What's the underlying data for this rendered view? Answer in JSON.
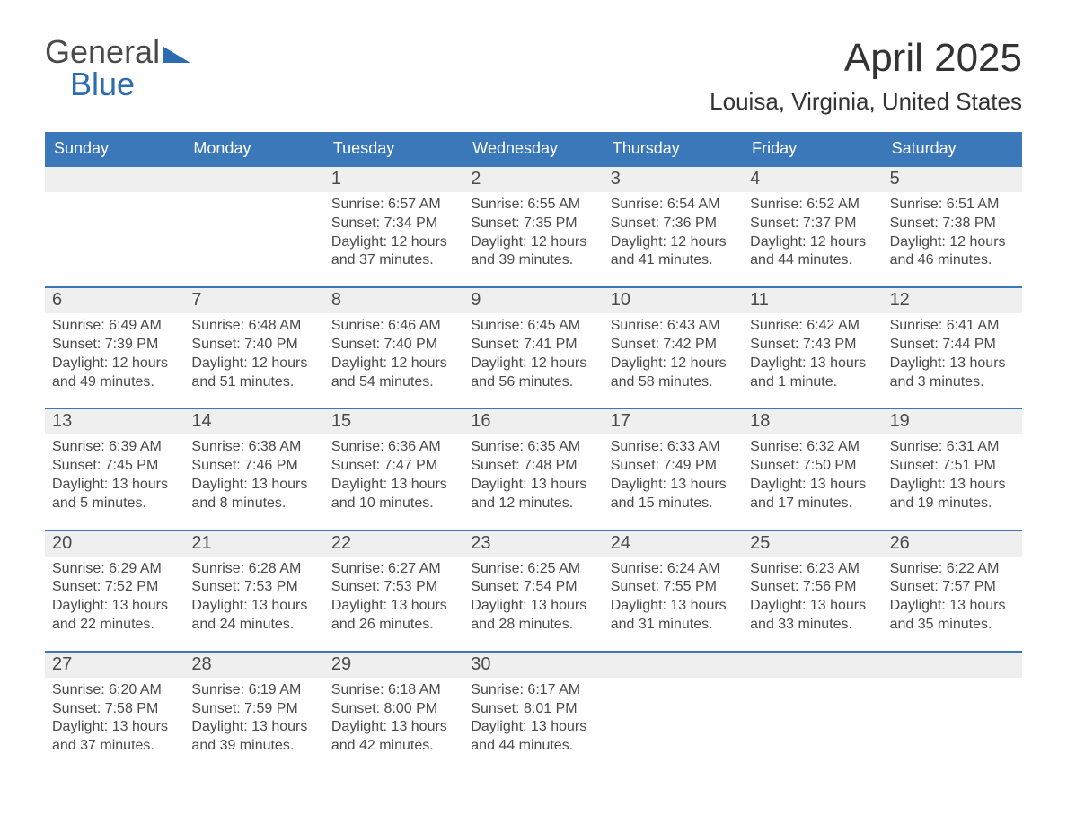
{
  "colors": {
    "brand_blue": "#2d6cb0",
    "header_blue": "#3a78b9",
    "daynum_bg": "#efefef",
    "text": "#333333",
    "muted": "#4a4a4a",
    "white": "#ffffff"
  },
  "logo": {
    "word1": "General",
    "word2": "Blue"
  },
  "title": "April 2025",
  "location": "Louisa, Virginia, United States",
  "weekdays": [
    "Sunday",
    "Monday",
    "Tuesday",
    "Wednesday",
    "Thursday",
    "Friday",
    "Saturday"
  ],
  "calendar": {
    "leading_blanks": 2,
    "days": [
      {
        "n": "1",
        "sunrise": "Sunrise: 6:57 AM",
        "sunset": "Sunset: 7:34 PM",
        "daylight": "Daylight: 12 hours and 37 minutes."
      },
      {
        "n": "2",
        "sunrise": "Sunrise: 6:55 AM",
        "sunset": "Sunset: 7:35 PM",
        "daylight": "Daylight: 12 hours and 39 minutes."
      },
      {
        "n": "3",
        "sunrise": "Sunrise: 6:54 AM",
        "sunset": "Sunset: 7:36 PM",
        "daylight": "Daylight: 12 hours and 41 minutes."
      },
      {
        "n": "4",
        "sunrise": "Sunrise: 6:52 AM",
        "sunset": "Sunset: 7:37 PM",
        "daylight": "Daylight: 12 hours and 44 minutes."
      },
      {
        "n": "5",
        "sunrise": "Sunrise: 6:51 AM",
        "sunset": "Sunset: 7:38 PM",
        "daylight": "Daylight: 12 hours and 46 minutes."
      },
      {
        "n": "6",
        "sunrise": "Sunrise: 6:49 AM",
        "sunset": "Sunset: 7:39 PM",
        "daylight": "Daylight: 12 hours and 49 minutes."
      },
      {
        "n": "7",
        "sunrise": "Sunrise: 6:48 AM",
        "sunset": "Sunset: 7:40 PM",
        "daylight": "Daylight: 12 hours and 51 minutes."
      },
      {
        "n": "8",
        "sunrise": "Sunrise: 6:46 AM",
        "sunset": "Sunset: 7:40 PM",
        "daylight": "Daylight: 12 hours and 54 minutes."
      },
      {
        "n": "9",
        "sunrise": "Sunrise: 6:45 AM",
        "sunset": "Sunset: 7:41 PM",
        "daylight": "Daylight: 12 hours and 56 minutes."
      },
      {
        "n": "10",
        "sunrise": "Sunrise: 6:43 AM",
        "sunset": "Sunset: 7:42 PM",
        "daylight": "Daylight: 12 hours and 58 minutes."
      },
      {
        "n": "11",
        "sunrise": "Sunrise: 6:42 AM",
        "sunset": "Sunset: 7:43 PM",
        "daylight": "Daylight: 13 hours and 1 minute."
      },
      {
        "n": "12",
        "sunrise": "Sunrise: 6:41 AM",
        "sunset": "Sunset: 7:44 PM",
        "daylight": "Daylight: 13 hours and 3 minutes."
      },
      {
        "n": "13",
        "sunrise": "Sunrise: 6:39 AM",
        "sunset": "Sunset: 7:45 PM",
        "daylight": "Daylight: 13 hours and 5 minutes."
      },
      {
        "n": "14",
        "sunrise": "Sunrise: 6:38 AM",
        "sunset": "Sunset: 7:46 PM",
        "daylight": "Daylight: 13 hours and 8 minutes."
      },
      {
        "n": "15",
        "sunrise": "Sunrise: 6:36 AM",
        "sunset": "Sunset: 7:47 PM",
        "daylight": "Daylight: 13 hours and 10 minutes."
      },
      {
        "n": "16",
        "sunrise": "Sunrise: 6:35 AM",
        "sunset": "Sunset: 7:48 PM",
        "daylight": "Daylight: 13 hours and 12 minutes."
      },
      {
        "n": "17",
        "sunrise": "Sunrise: 6:33 AM",
        "sunset": "Sunset: 7:49 PM",
        "daylight": "Daylight: 13 hours and 15 minutes."
      },
      {
        "n": "18",
        "sunrise": "Sunrise: 6:32 AM",
        "sunset": "Sunset: 7:50 PM",
        "daylight": "Daylight: 13 hours and 17 minutes."
      },
      {
        "n": "19",
        "sunrise": "Sunrise: 6:31 AM",
        "sunset": "Sunset: 7:51 PM",
        "daylight": "Daylight: 13 hours and 19 minutes."
      },
      {
        "n": "20",
        "sunrise": "Sunrise: 6:29 AM",
        "sunset": "Sunset: 7:52 PM",
        "daylight": "Daylight: 13 hours and 22 minutes."
      },
      {
        "n": "21",
        "sunrise": "Sunrise: 6:28 AM",
        "sunset": "Sunset: 7:53 PM",
        "daylight": "Daylight: 13 hours and 24 minutes."
      },
      {
        "n": "22",
        "sunrise": "Sunrise: 6:27 AM",
        "sunset": "Sunset: 7:53 PM",
        "daylight": "Daylight: 13 hours and 26 minutes."
      },
      {
        "n": "23",
        "sunrise": "Sunrise: 6:25 AM",
        "sunset": "Sunset: 7:54 PM",
        "daylight": "Daylight: 13 hours and 28 minutes."
      },
      {
        "n": "24",
        "sunrise": "Sunrise: 6:24 AM",
        "sunset": "Sunset: 7:55 PM",
        "daylight": "Daylight: 13 hours and 31 minutes."
      },
      {
        "n": "25",
        "sunrise": "Sunrise: 6:23 AM",
        "sunset": "Sunset: 7:56 PM",
        "daylight": "Daylight: 13 hours and 33 minutes."
      },
      {
        "n": "26",
        "sunrise": "Sunrise: 6:22 AM",
        "sunset": "Sunset: 7:57 PM",
        "daylight": "Daylight: 13 hours and 35 minutes."
      },
      {
        "n": "27",
        "sunrise": "Sunrise: 6:20 AM",
        "sunset": "Sunset: 7:58 PM",
        "daylight": "Daylight: 13 hours and 37 minutes."
      },
      {
        "n": "28",
        "sunrise": "Sunrise: 6:19 AM",
        "sunset": "Sunset: 7:59 PM",
        "daylight": "Daylight: 13 hours and 39 minutes."
      },
      {
        "n": "29",
        "sunrise": "Sunrise: 6:18 AM",
        "sunset": "Sunset: 8:00 PM",
        "daylight": "Daylight: 13 hours and 42 minutes."
      },
      {
        "n": "30",
        "sunrise": "Sunrise: 6:17 AM",
        "sunset": "Sunset: 8:01 PM",
        "daylight": "Daylight: 13 hours and 44 minutes."
      }
    ],
    "trailing_blanks": 3
  }
}
